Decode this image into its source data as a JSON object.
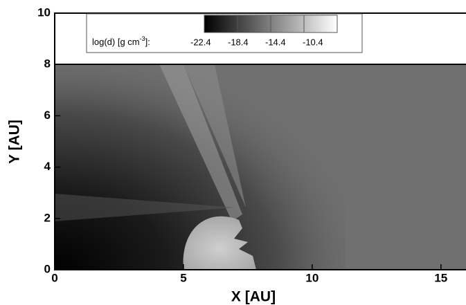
{
  "chart_data": {
    "type": "heatmap",
    "xlabel": "X [AU]",
    "ylabel": "Y [AU]",
    "xlim": [
      0,
      16
    ],
    "ylim": [
      0,
      10
    ],
    "xticks": [
      0,
      5,
      10,
      15
    ],
    "yticks": [
      0,
      2,
      4,
      6,
      8,
      10
    ],
    "colorbar": {
      "label": "log(d) [g cm",
      "label_sup": "-3",
      "label_end": "]:",
      "ticks": [
        -22.4,
        -18.4,
        -14.4,
        -10.4
      ]
    }
  }
}
